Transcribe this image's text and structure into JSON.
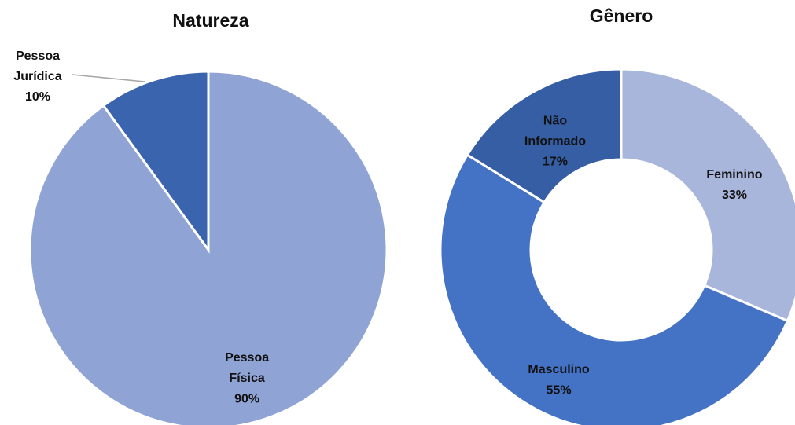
{
  "chart_data": [
    {
      "type": "pie",
      "title": "Natureza",
      "categories": [
        "Pessoa Física",
        "Pessoa Jurídica"
      ],
      "values": [
        90,
        10
      ],
      "value_labels": [
        "90%",
        "10%"
      ],
      "colors": [
        "#8fa3d4",
        "#3a64ad"
      ]
    },
    {
      "type": "donut",
      "title": "Gênero",
      "categories": [
        "Feminino",
        "Masculino",
        "Não Informado"
      ],
      "values": [
        33,
        55,
        17
      ],
      "value_labels": [
        "33%",
        "55%",
        "17%"
      ],
      "colors": [
        "#a9b6db",
        "#4472c4",
        "#365ea5"
      ]
    }
  ]
}
